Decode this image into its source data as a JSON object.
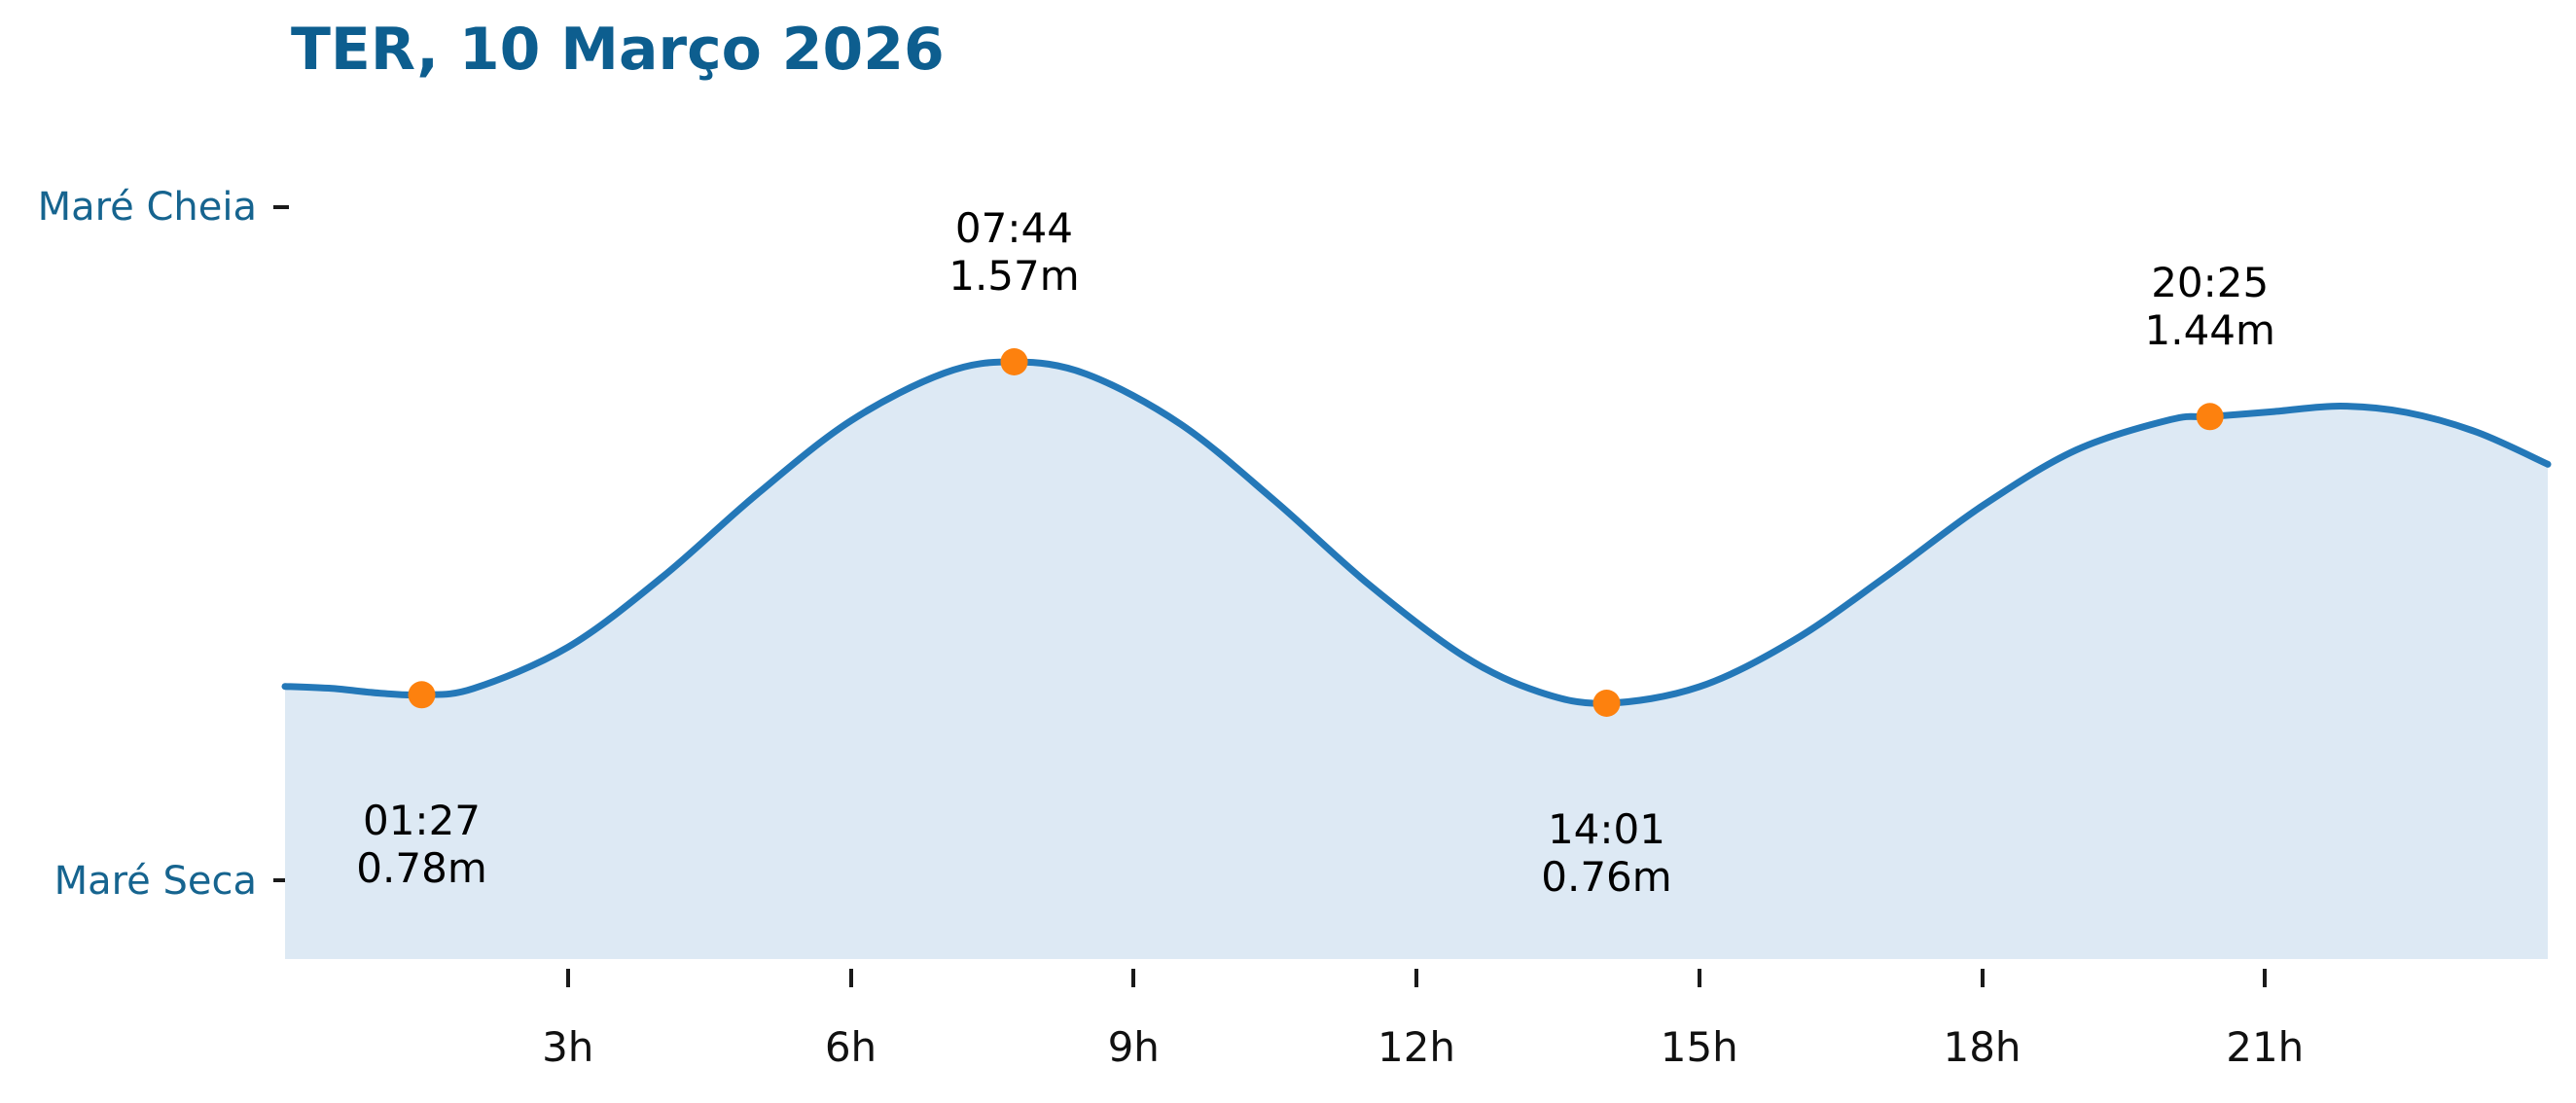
{
  "colors": {
    "title_text": "#0d5e8f",
    "axis_label_text": "#16648f",
    "curve_line": "#2478b8",
    "area_fill": "#dde9f4",
    "marker": "#fd810e",
    "annotation_text": "#000000",
    "tick_mark": "#1a1a1a",
    "background": "#ffffff"
  },
  "chart_data": {
    "type": "area",
    "title": "TER, 10 Março 2026",
    "x_axis": {
      "range_hours": [
        0,
        24
      ],
      "tick_hours": [
        3,
        6,
        9,
        12,
        15,
        18,
        21
      ],
      "tick_labels": [
        "3h",
        "6h",
        "9h",
        "12h",
        "15h",
        "18h",
        "21h"
      ]
    },
    "y_axis": {
      "high_label": "Maré Cheia",
      "low_label": "Maré Seca"
    },
    "tide_events": [
      {
        "time": "01:27",
        "height_label": "0.78m",
        "height_m": 0.78,
        "t_hours": 1.45,
        "type": "low"
      },
      {
        "time": "07:44",
        "height_label": "1.57m",
        "height_m": 1.57,
        "t_hours": 7.733,
        "type": "high"
      },
      {
        "time": "14:01",
        "height_label": "0.76m",
        "height_m": 0.76,
        "t_hours": 14.017,
        "type": "low"
      },
      {
        "time": "20:25",
        "height_label": "1.44m",
        "height_m": 1.44,
        "t_hours": 20.417,
        "type": "high"
      }
    ],
    "curve_samples": [
      [
        0,
        0.8
      ],
      [
        0.5,
        0.795
      ],
      [
        1.0,
        0.784
      ],
      [
        1.45,
        0.78
      ],
      [
        2,
        0.795
      ],
      [
        3,
        0.893
      ],
      [
        4,
        1.059
      ],
      [
        5,
        1.255
      ],
      [
        6,
        1.43
      ],
      [
        7,
        1.544
      ],
      [
        7.733,
        1.57
      ],
      [
        8.5,
        1.541
      ],
      [
        9.5,
        1.422
      ],
      [
        10.5,
        1.24
      ],
      [
        11.5,
        1.041
      ],
      [
        12.5,
        0.872
      ],
      [
        13.3,
        0.787
      ],
      [
        14.017,
        0.76
      ],
      [
        15,
        0.799
      ],
      [
        16,
        0.909
      ],
      [
        17,
        1.064
      ],
      [
        18,
        1.228
      ],
      [
        19,
        1.361
      ],
      [
        20,
        1.433
      ],
      [
        20.417,
        1.44
      ],
      [
        21.1,
        1.452
      ],
      [
        21.8,
        1.465
      ],
      [
        22.5,
        1.45
      ],
      [
        23.25,
        1.403
      ],
      [
        24,
        1.327
      ]
    ]
  }
}
